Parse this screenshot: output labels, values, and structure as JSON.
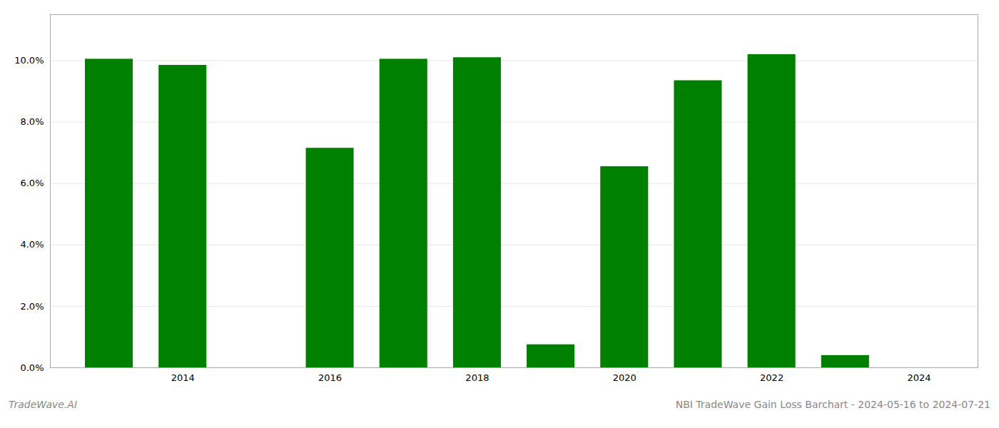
{
  "chart_data": {
    "type": "bar",
    "title": "NBI TradeWave Gain Loss Barchart - 2024-05-16 to 2024-07-21",
    "annotations": [
      "TradeWave.AI"
    ],
    "x": [
      2013,
      2014,
      2016,
      2017,
      2018,
      2019,
      2020,
      2021,
      2022,
      2023
    ],
    "values": [
      0.1005,
      0.0985,
      0.0715,
      0.1005,
      0.101,
      0.0075,
      0.0655,
      0.0935,
      0.102,
      0.004
    ],
    "color": "#008000",
    "xlim": [
      2012.2,
      2024.8
    ],
    "xticks": [
      2014,
      2016,
      2018,
      2020,
      2022,
      2024
    ],
    "ylim": [
      0,
      0.115
    ],
    "yticks": [
      {
        "value": 0.0,
        "label": "0.0%"
      },
      {
        "value": 0.02,
        "label": "2.0%"
      },
      {
        "value": 0.04,
        "label": "4.0%"
      },
      {
        "value": 0.06,
        "label": "6.0%"
      },
      {
        "value": 0.08,
        "label": "8.0%"
      },
      {
        "value": 0.1,
        "label": "10.0%"
      }
    ],
    "grid": true
  }
}
